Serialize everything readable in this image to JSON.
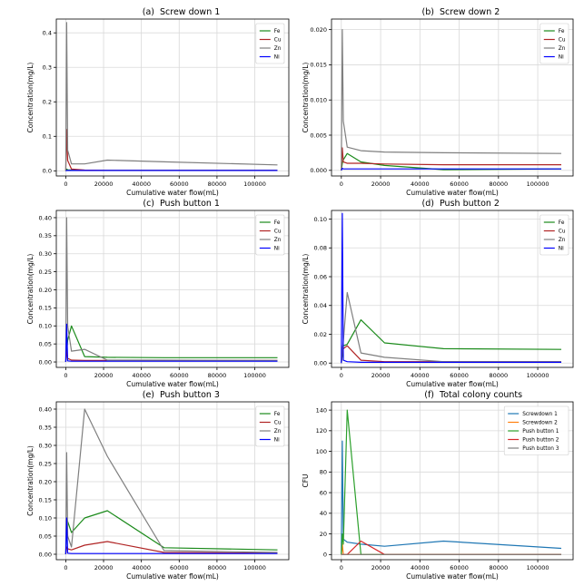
{
  "colors": {
    "Fe": "#1a8a1a",
    "Cu": "#b02424",
    "Zn": "#7f7f7f",
    "Ni": "#0000ff",
    "Screwdown 1": "#1f77b4",
    "Screwdown 2": "#ff7f0e",
    "Push button 1": "#2ca02c",
    "Push button 2": "#d62728",
    "Push button 3": "#7f7f7f"
  },
  "chart_data": [
    {
      "type": "line",
      "panel": "(a)",
      "title": "Screw down 1",
      "xlabel": "Cumulative water flow(mL)",
      "ylabel": "Concentration(mg/L)",
      "xlim": [
        -5000,
        118000
      ],
      "ylim": [
        -0.015,
        0.44
      ],
      "xticks": [
        0,
        20000,
        40000,
        60000,
        80000,
        100000
      ],
      "yticks": [
        0.0,
        0.1,
        0.2,
        0.3,
        0.4
      ],
      "ytick_labels": [
        "0.0",
        "0.1",
        "0.2",
        "0.3",
        "0.4"
      ],
      "grid": true,
      "legend": "top-right",
      "series": [
        {
          "name": "Fe",
          "x": [
            0,
            500,
            1000,
            3000,
            10000,
            22000,
            52000,
            112000
          ],
          "y": [
            0.0,
            0.005,
            0.003,
            0.002,
            0.001,
            0.001,
            0.001,
            0.001
          ]
        },
        {
          "name": "Cu",
          "x": [
            0,
            500,
            1000,
            3000,
            10000,
            22000,
            52000,
            112000
          ],
          "y": [
            0.0,
            0.12,
            0.03,
            0.005,
            0.002,
            0.001,
            0.001,
            0.001
          ]
        },
        {
          "name": "Zn",
          "x": [
            0,
            500,
            1000,
            3000,
            10000,
            22000,
            52000,
            112000
          ],
          "y": [
            0.0,
            0.43,
            0.06,
            0.02,
            0.02,
            0.031,
            0.026,
            0.017
          ]
        },
        {
          "name": "Ni",
          "x": [
            0,
            500,
            1000,
            3000,
            10000,
            22000,
            52000,
            112000
          ],
          "y": [
            0.0,
            0.001,
            0.001,
            0.001,
            0.001,
            0.001,
            0.001,
            0.001
          ]
        }
      ]
    },
    {
      "type": "line",
      "panel": "(b)",
      "title": "Screw down 2",
      "xlabel": "Cumulative water flow(mL)",
      "ylabel": "Concentration(mg/L)",
      "xlim": [
        -5000,
        118000
      ],
      "ylim": [
        -0.0008,
        0.0215
      ],
      "xticks": [
        0,
        20000,
        40000,
        60000,
        80000,
        100000
      ],
      "yticks": [
        0.0,
        0.005,
        0.01,
        0.015,
        0.02
      ],
      "ytick_labels": [
        "0.000",
        "0.005",
        "0.010",
        "0.015",
        "0.020"
      ],
      "grid": true,
      "legend": "top-right",
      "series": [
        {
          "name": "Fe",
          "x": [
            0,
            500,
            1000,
            3000,
            10000,
            22000,
            52000,
            112000
          ],
          "y": [
            0.0,
            0.001,
            0.0015,
            0.0024,
            0.0012,
            0.0007,
            0.0001,
            0.0002
          ]
        },
        {
          "name": "Cu",
          "x": [
            0,
            500,
            1000,
            3000,
            10000,
            22000,
            52000,
            112000
          ],
          "y": [
            0.0,
            0.0032,
            0.0012,
            0.001,
            0.001,
            0.0009,
            0.0008,
            0.0008
          ]
        },
        {
          "name": "Zn",
          "x": [
            0,
            500,
            1000,
            3000,
            10000,
            22000,
            52000,
            112000
          ],
          "y": [
            0.0,
            0.02,
            0.007,
            0.0033,
            0.0028,
            0.0026,
            0.0025,
            0.0024
          ]
        },
        {
          "name": "Ni",
          "x": [
            0,
            500,
            1000,
            3000,
            10000,
            22000,
            52000,
            112000
          ],
          "y": [
            0.0,
            0.0003,
            0.0002,
            0.0002,
            0.0002,
            0.0002,
            0.0002,
            0.0002
          ]
        }
      ]
    },
    {
      "type": "line",
      "panel": "(c)",
      "title": "Push button 1",
      "xlabel": "Cumulative water flow(mL)",
      "ylabel": "Concentration(mg/L)",
      "xlim": [
        -5000,
        118000
      ],
      "ylim": [
        -0.015,
        0.42
      ],
      "xticks": [
        0,
        20000,
        40000,
        60000,
        80000,
        100000
      ],
      "yticks": [
        0.0,
        0.05,
        0.1,
        0.15,
        0.2,
        0.25,
        0.3,
        0.35,
        0.4
      ],
      "ytick_labels": [
        "0.00",
        "0.05",
        "0.10",
        "0.15",
        "0.20",
        "0.25",
        "0.30",
        "0.35",
        "0.40"
      ],
      "grid": true,
      "legend": "top-right",
      "series": [
        {
          "name": "Fe",
          "x": [
            0,
            500,
            1000,
            3000,
            10000,
            22000,
            52000,
            112000
          ],
          "y": [
            0.0,
            0.03,
            0.06,
            0.1,
            0.015,
            0.013,
            0.012,
            0.012
          ]
        },
        {
          "name": "Cu",
          "x": [
            0,
            500,
            1000,
            3000,
            10000,
            22000,
            52000,
            112000
          ],
          "y": [
            0.0,
            0.03,
            0.01,
            0.005,
            0.004,
            0.004,
            0.004,
            0.004
          ]
        },
        {
          "name": "Zn",
          "x": [
            0,
            500,
            1000,
            3000,
            10000,
            22000,
            52000,
            112000
          ],
          "y": [
            0.0,
            0.4,
            0.1,
            0.03,
            0.035,
            0.005,
            0.005,
            0.004
          ]
        },
        {
          "name": "Ni",
          "x": [
            0,
            500,
            1000,
            3000,
            10000,
            22000,
            52000,
            112000
          ],
          "y": [
            0.0,
            0.105,
            0.003,
            0.002,
            0.002,
            0.002,
            0.002,
            0.002
          ]
        }
      ]
    },
    {
      "type": "line",
      "panel": "(d)",
      "title": "Push button 2",
      "xlabel": "Cumulative water flow(mL)",
      "ylabel": "Concentration(mg/L)",
      "xlim": [
        -5000,
        118000
      ],
      "ylim": [
        -0.003,
        0.106
      ],
      "xticks": [
        0,
        20000,
        40000,
        60000,
        80000,
        100000
      ],
      "yticks": [
        0.0,
        0.02,
        0.04,
        0.06,
        0.08,
        0.1
      ],
      "ytick_labels": [
        "0.00",
        "0.02",
        "0.04",
        "0.06",
        "0.08",
        "0.10"
      ],
      "grid": true,
      "legend": "top-right",
      "series": [
        {
          "name": "Fe",
          "x": [
            0,
            500,
            1000,
            3000,
            10000,
            22000,
            52000,
            112000
          ],
          "y": [
            0.0,
            0.005,
            0.012,
            0.013,
            0.03,
            0.014,
            0.01,
            0.0095
          ]
        },
        {
          "name": "Cu",
          "x": [
            0,
            500,
            1000,
            3000,
            10000,
            22000,
            52000,
            112000
          ],
          "y": [
            0.0,
            0.008,
            0.01,
            0.012,
            0.002,
            0.001,
            0.001,
            0.001
          ]
        },
        {
          "name": "Zn",
          "x": [
            0,
            500,
            1000,
            3000,
            10000,
            22000,
            52000,
            112000
          ],
          "y": [
            0.0,
            0.01,
            0.015,
            0.049,
            0.007,
            0.004,
            0.001,
            0.001
          ]
        },
        {
          "name": "Ni",
          "x": [
            0,
            500,
            1000,
            3000,
            10000,
            22000,
            52000,
            112000
          ],
          "y": [
            0.0,
            0.104,
            0.002,
            0.001,
            0.0005,
            0.0005,
            0.0005,
            0.0005
          ]
        }
      ]
    },
    {
      "type": "line",
      "panel": "(e)",
      "title": "Push button 3",
      "xlabel": "Cumulative water flow(mL)",
      "ylabel": "Concentration(mg/L)",
      "xlim": [
        -5000,
        118000
      ],
      "ylim": [
        -0.015,
        0.42
      ],
      "xticks": [
        0,
        20000,
        40000,
        60000,
        80000,
        100000
      ],
      "yticks": [
        0.0,
        0.05,
        0.1,
        0.15,
        0.2,
        0.25,
        0.3,
        0.35,
        0.4
      ],
      "ytick_labels": [
        "0.00",
        "0.05",
        "0.10",
        "0.15",
        "0.20",
        "0.25",
        "0.30",
        "0.35",
        "0.40"
      ],
      "grid": true,
      "legend": "top-right",
      "series": [
        {
          "name": "Fe",
          "x": [
            0,
            500,
            1000,
            3000,
            10000,
            22000,
            52000,
            112000
          ],
          "y": [
            0.0,
            0.095,
            0.09,
            0.06,
            0.1,
            0.12,
            0.018,
            0.012
          ]
        },
        {
          "name": "Cu",
          "x": [
            0,
            500,
            1000,
            3000,
            10000,
            22000,
            52000,
            112000
          ],
          "y": [
            0.0,
            0.02,
            0.015,
            0.012,
            0.025,
            0.035,
            0.005,
            0.003
          ]
        },
        {
          "name": "Zn",
          "x": [
            0,
            500,
            1000,
            3000,
            10000,
            22000,
            52000,
            112000
          ],
          "y": [
            0.0,
            0.28,
            0.05,
            0.02,
            0.4,
            0.27,
            0.01,
            0.005
          ]
        },
        {
          "name": "Ni",
          "x": [
            0,
            500,
            1000,
            3000,
            10000,
            22000,
            52000,
            112000
          ],
          "y": [
            0.0,
            0.1,
            0.003,
            0.002,
            0.002,
            0.002,
            0.002,
            0.002
          ]
        }
      ]
    },
    {
      "type": "line",
      "panel": "(f)",
      "title": "Total colony counts",
      "xlabel": "Cumulative water flow(mL)",
      "ylabel": "CFU",
      "xlim": [
        -5000,
        118000
      ],
      "ylim": [
        -5,
        148
      ],
      "xticks": [
        0,
        20000,
        40000,
        60000,
        80000,
        100000
      ],
      "yticks": [
        0,
        20,
        40,
        60,
        80,
        100,
        120,
        140
      ],
      "ytick_labels": [
        "0",
        "20",
        "40",
        "60",
        "80",
        "100",
        "120",
        "140"
      ],
      "grid": true,
      "legend": "top-right",
      "series": [
        {
          "name": "Screwdown 1",
          "x": [
            0,
            500,
            1000,
            3000,
            10000,
            22000,
            52000,
            112000
          ],
          "y": [
            0,
            110,
            15,
            12,
            10,
            8,
            13,
            6
          ]
        },
        {
          "name": "Screwdown 2",
          "x": [
            0,
            500,
            1000,
            3000,
            10000,
            22000,
            52000,
            112000
          ],
          "y": [
            0,
            10,
            0,
            0,
            0,
            0,
            0,
            0
          ]
        },
        {
          "name": "Push button 1",
          "x": [
            0,
            500,
            1000,
            3000,
            10000,
            22000,
            52000,
            112000
          ],
          "y": [
            0,
            20,
            10,
            140,
            0,
            0,
            0,
            0
          ]
        },
        {
          "name": "Push button 2",
          "x": [
            0,
            500,
            1000,
            3000,
            10000,
            22000,
            52000,
            112000
          ],
          "y": [
            0,
            0,
            0,
            0,
            13,
            0,
            0,
            0
          ]
        },
        {
          "name": "Push button 3",
          "x": [
            0,
            500,
            1000,
            3000,
            10000,
            22000,
            52000,
            112000
          ],
          "y": [
            0,
            0,
            0,
            0,
            0,
            0,
            0,
            0
          ]
        }
      ]
    }
  ]
}
